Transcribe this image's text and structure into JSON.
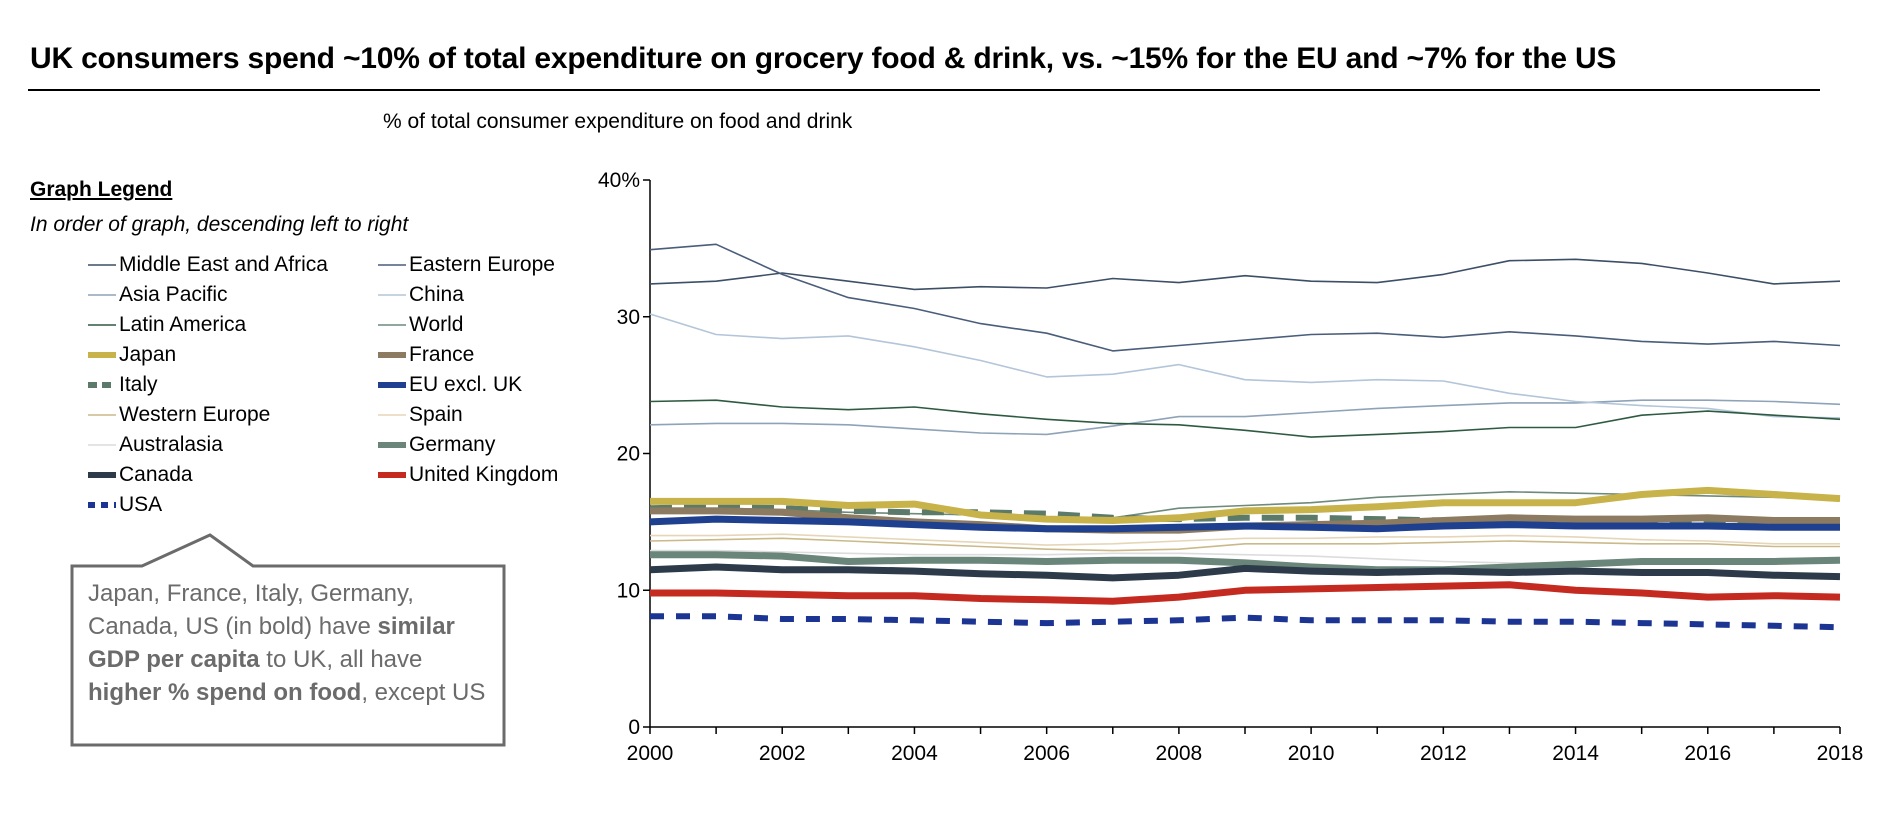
{
  "title": "UK consumers spend ~10% of total expenditure on grocery food & drink, vs. ~15% for the EU and ~7% for the US",
  "subtitle": "% of total consumer expenditure on food and drink",
  "legend": {
    "heading": "Graph Legend",
    "subheading": "In order of graph, descending left to right"
  },
  "callout": {
    "part1": "Japan, France, Italy, Germany, Canada, US (in bold) have ",
    "bold1": "similar GDP per capita",
    "part2": " to UK, all have ",
    "bold2": "higher % spend on food",
    "part3": ", except US"
  },
  "chart_data": {
    "type": "line",
    "title": "% of total consumer expenditure on food and drink",
    "xlabel": "",
    "ylabel": "",
    "xlim": [
      2000,
      2018
    ],
    "ylim": [
      0,
      40
    ],
    "y_ticks": [
      "0",
      "10",
      "20",
      "30",
      "40%"
    ],
    "x_ticks": [
      "2000",
      "2002",
      "2004",
      "2006",
      "2008",
      "2010",
      "2012",
      "2014",
      "2016",
      "2018"
    ],
    "x": [
      2000,
      2001,
      2002,
      2003,
      2004,
      2005,
      2006,
      2007,
      2008,
      2009,
      2010,
      2011,
      2012,
      2013,
      2014,
      2015,
      2016,
      2017,
      2018
    ],
    "series": [
      {
        "name": "Middle East and Africa",
        "color": "#3d4f66",
        "style": "thin",
        "values": [
          32.4,
          32.6,
          33.2,
          32.6,
          32.0,
          32.2,
          32.1,
          32.8,
          32.5,
          33.0,
          32.6,
          32.5,
          33.1,
          34.1,
          34.2,
          33.9,
          33.2,
          32.4,
          32.6
        ]
      },
      {
        "name": "Eastern Europe",
        "color": "#4a5d7a",
        "style": "thin",
        "values": [
          34.9,
          35.3,
          33.1,
          31.4,
          30.6,
          29.5,
          28.8,
          27.5,
          27.9,
          28.3,
          28.7,
          28.8,
          28.5,
          28.9,
          28.6,
          28.2,
          28.0,
          28.2,
          27.9
        ]
      },
      {
        "name": "Asia Pacific",
        "color": "#8fa3b8",
        "style": "thin",
        "values": [
          22.1,
          22.2,
          22.2,
          22.1,
          21.8,
          21.5,
          21.4,
          22.0,
          22.7,
          22.7,
          23.0,
          23.3,
          23.5,
          23.7,
          23.7,
          23.9,
          23.9,
          23.8,
          23.6
        ]
      },
      {
        "name": "China",
        "color": "#b3c5d9",
        "style": "thin",
        "values": [
          30.2,
          28.7,
          28.4,
          28.6,
          27.8,
          26.8,
          25.6,
          25.8,
          26.5,
          25.4,
          25.2,
          25.4,
          25.3,
          24.4,
          23.8,
          23.5,
          23.3,
          22.7,
          22.6
        ]
      },
      {
        "name": "Latin America",
        "color": "#2e5a42",
        "style": "thin",
        "values": [
          23.8,
          23.9,
          23.4,
          23.2,
          23.4,
          22.9,
          22.5,
          22.2,
          22.1,
          21.7,
          21.2,
          21.4,
          21.6,
          21.9,
          21.9,
          22.8,
          23.1,
          22.8,
          22.5
        ]
      },
      {
        "name": "World",
        "color": "#6e8a7a",
        "style": "thin",
        "values": [
          16.0,
          16.0,
          15.9,
          15.7,
          15.6,
          15.5,
          15.3,
          15.3,
          16.0,
          16.2,
          16.4,
          16.8,
          17.0,
          17.2,
          17.1,
          17.0,
          16.9,
          16.8,
          16.6
        ]
      },
      {
        "name": "Japan",
        "color": "#c8b24a",
        "style": "thick",
        "values": [
          16.5,
          16.5,
          16.5,
          16.2,
          16.3,
          15.5,
          15.2,
          15.1,
          15.3,
          15.8,
          15.9,
          16.1,
          16.4,
          16.4,
          16.4,
          17.0,
          17.3,
          17.0,
          16.7
        ]
      },
      {
        "name": "France",
        "color": "#8c7b60",
        "style": "thick",
        "values": [
          15.8,
          15.8,
          15.7,
          15.3,
          15.0,
          14.8,
          14.5,
          14.4,
          14.4,
          14.7,
          14.8,
          14.9,
          15.1,
          15.3,
          15.2,
          15.2,
          15.3,
          15.1,
          15.1
        ]
      },
      {
        "name": "Italy",
        "color": "#5b7a6a",
        "style": "dashed",
        "values": [
          16.0,
          16.1,
          16.0,
          15.8,
          15.7,
          15.7,
          15.6,
          15.3,
          15.2,
          15.3,
          15.3,
          15.2,
          15.1,
          15.0,
          15.1,
          15.0,
          14.9,
          14.9,
          14.9
        ]
      },
      {
        "name": "EU excl. UK",
        "color": "#1f3f8f",
        "style": "thick",
        "values": [
          15.0,
          15.2,
          15.1,
          15.0,
          14.8,
          14.6,
          14.5,
          14.5,
          14.6,
          14.7,
          14.6,
          14.5,
          14.7,
          14.8,
          14.7,
          14.7,
          14.7,
          14.6,
          14.6
        ]
      },
      {
        "name": "Western Europe",
        "color": "#cbb98a",
        "style": "thin",
        "values": [
          13.6,
          13.7,
          13.8,
          13.6,
          13.4,
          13.2,
          13.0,
          12.9,
          13.0,
          13.4,
          13.4,
          13.4,
          13.5,
          13.6,
          13.5,
          13.4,
          13.4,
          13.2,
          13.2
        ]
      },
      {
        "name": "Spain",
        "color": "#e6d6b8",
        "style": "thin",
        "values": [
          14.0,
          14.0,
          14.1,
          13.9,
          13.7,
          13.5,
          13.3,
          13.4,
          13.6,
          13.8,
          13.8,
          13.9,
          13.9,
          14.0,
          13.9,
          13.7,
          13.6,
          13.4,
          13.4
        ]
      },
      {
        "name": "Australasia",
        "color": "#dcdcdc",
        "style": "thin",
        "values": [
          12.9,
          12.9,
          12.8,
          12.7,
          12.6,
          12.6,
          12.6,
          12.7,
          12.7,
          12.6,
          12.5,
          12.3,
          12.1,
          12.0,
          12.0,
          12.1,
          12.2,
          12.3,
          12.4
        ]
      },
      {
        "name": "Germany",
        "color": "#6a857a",
        "style": "thick",
        "values": [
          12.6,
          12.6,
          12.5,
          12.1,
          12.2,
          12.2,
          12.1,
          12.2,
          12.2,
          12.0,
          11.7,
          11.5,
          11.5,
          11.7,
          11.9,
          12.1,
          12.1,
          12.1,
          12.2
        ]
      },
      {
        "name": "Canada",
        "color": "#2c3a4a",
        "style": "thick",
        "values": [
          11.5,
          11.7,
          11.5,
          11.5,
          11.4,
          11.2,
          11.1,
          10.9,
          11.1,
          11.6,
          11.4,
          11.3,
          11.4,
          11.3,
          11.4,
          11.3,
          11.3,
          11.1,
          11.0
        ]
      },
      {
        "name": "United Kingdom",
        "color": "#c42a20",
        "style": "thick",
        "values": [
          9.8,
          9.8,
          9.7,
          9.6,
          9.6,
          9.4,
          9.3,
          9.2,
          9.5,
          10.0,
          10.1,
          10.2,
          10.3,
          10.4,
          10.0,
          9.8,
          9.5,
          9.6,
          9.5
        ]
      },
      {
        "name": "USA",
        "color": "#1c3593",
        "style": "dotted",
        "values": [
          8.1,
          8.1,
          7.9,
          7.9,
          7.8,
          7.7,
          7.6,
          7.7,
          7.8,
          8.0,
          7.8,
          7.8,
          7.8,
          7.7,
          7.7,
          7.6,
          7.5,
          7.4,
          7.3
        ]
      }
    ]
  }
}
